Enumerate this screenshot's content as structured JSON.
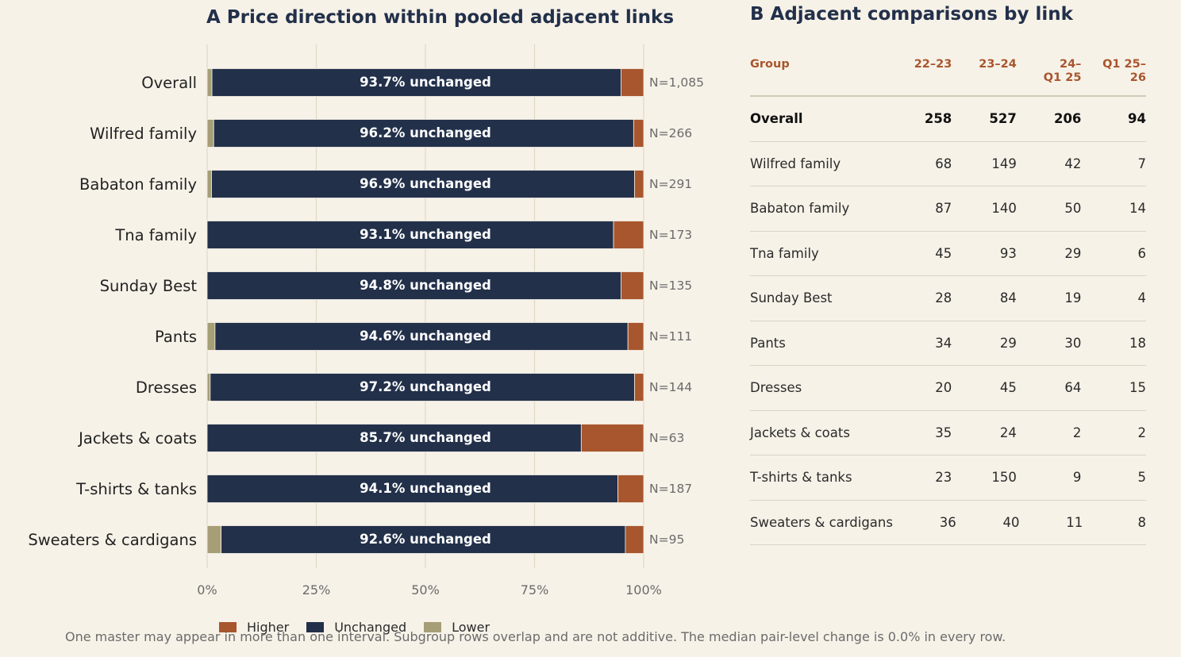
{
  "panel_a_title": "A  Price direction within pooled adjacent links",
  "panel_b_title": "B  Adjacent comparisons by link",
  "colors": {
    "higher": "#a8562e",
    "unchanged": "#22304a",
    "lower": "#a69e76",
    "background": "#f7f2e8",
    "grid": "#e2d9c4"
  },
  "chart_data": {
    "type": "bar",
    "orientation": "horizontal",
    "stacked": true,
    "categories": [
      "Overall",
      "Wilfred family",
      "Babaton family",
      "Tna family",
      "Sunday Best",
      "Pants",
      "Dresses",
      "Jackets & coats",
      "T-shirts & tanks",
      "Sweaters & cardigans"
    ],
    "series": [
      {
        "name": "Lower",
        "values": [
          1.1,
          1.5,
          1.0,
          0.0,
          0.0,
          1.8,
          0.7,
          0.0,
          0.0,
          3.2
        ]
      },
      {
        "name": "Unchanged",
        "values": [
          93.7,
          96.2,
          96.9,
          93.1,
          94.8,
          94.6,
          97.2,
          85.7,
          94.1,
          92.6
        ]
      },
      {
        "name": "Higher",
        "values": [
          5.2,
          2.3,
          2.1,
          6.9,
          5.2,
          3.6,
          2.1,
          14.3,
          5.9,
          4.2
        ]
      }
    ],
    "bar_labels": [
      "93.7% unchanged",
      "96.2% unchanged",
      "96.9% unchanged",
      "93.1% unchanged",
      "94.8% unchanged",
      "94.6% unchanged",
      "97.2% unchanged",
      "85.7% unchanged",
      "94.1% unchanged",
      "92.6% unchanged"
    ],
    "n_labels": [
      "N=1,085",
      "N=266",
      "N=291",
      "N=173",
      "N=135",
      "N=111",
      "N=144",
      "N=63",
      "N=187",
      "N=95"
    ],
    "x_ticks": [
      0,
      25,
      50,
      75,
      100
    ],
    "x_tick_labels": [
      "0%",
      "25%",
      "50%",
      "75%",
      "100%"
    ],
    "xlim": [
      0,
      100
    ],
    "grid": true,
    "legend_position": "bottom"
  },
  "legend": [
    {
      "name": "Higher",
      "color": "#a8562e"
    },
    {
      "name": "Unchanged",
      "color": "#22304a"
    },
    {
      "name": "Lower",
      "color": "#a69e76"
    }
  ],
  "table": {
    "headers": [
      "Group",
      "22–23",
      "23–24",
      "24–\nQ1 25",
      "Q1 25–\n26"
    ],
    "rows": [
      {
        "group": "Overall",
        "v": [
          "258",
          "527",
          "206",
          "94"
        ]
      },
      {
        "group": "Wilfred family",
        "v": [
          "68",
          "149",
          "42",
          "7"
        ]
      },
      {
        "group": "Babaton family",
        "v": [
          "87",
          "140",
          "50",
          "14"
        ]
      },
      {
        "group": "Tna family",
        "v": [
          "45",
          "93",
          "29",
          "6"
        ]
      },
      {
        "group": "Sunday Best",
        "v": [
          "28",
          "84",
          "19",
          "4"
        ]
      },
      {
        "group": "Pants",
        "v": [
          "34",
          "29",
          "30",
          "18"
        ]
      },
      {
        "group": "Dresses",
        "v": [
          "20",
          "45",
          "64",
          "15"
        ]
      },
      {
        "group": "Jackets & coats",
        "v": [
          "35",
          "24",
          "2",
          "2"
        ]
      },
      {
        "group": "T-shirts & tanks",
        "v": [
          "23",
          "150",
          "9",
          "5"
        ]
      },
      {
        "group": "Sweaters & cardigans",
        "v": [
          "36",
          "40",
          "11",
          "8"
        ]
      }
    ]
  },
  "footnote": "One master may appear in more than one interval. Subgroup rows overlap and are not additive. The median pair-level change is 0.0% in every row."
}
